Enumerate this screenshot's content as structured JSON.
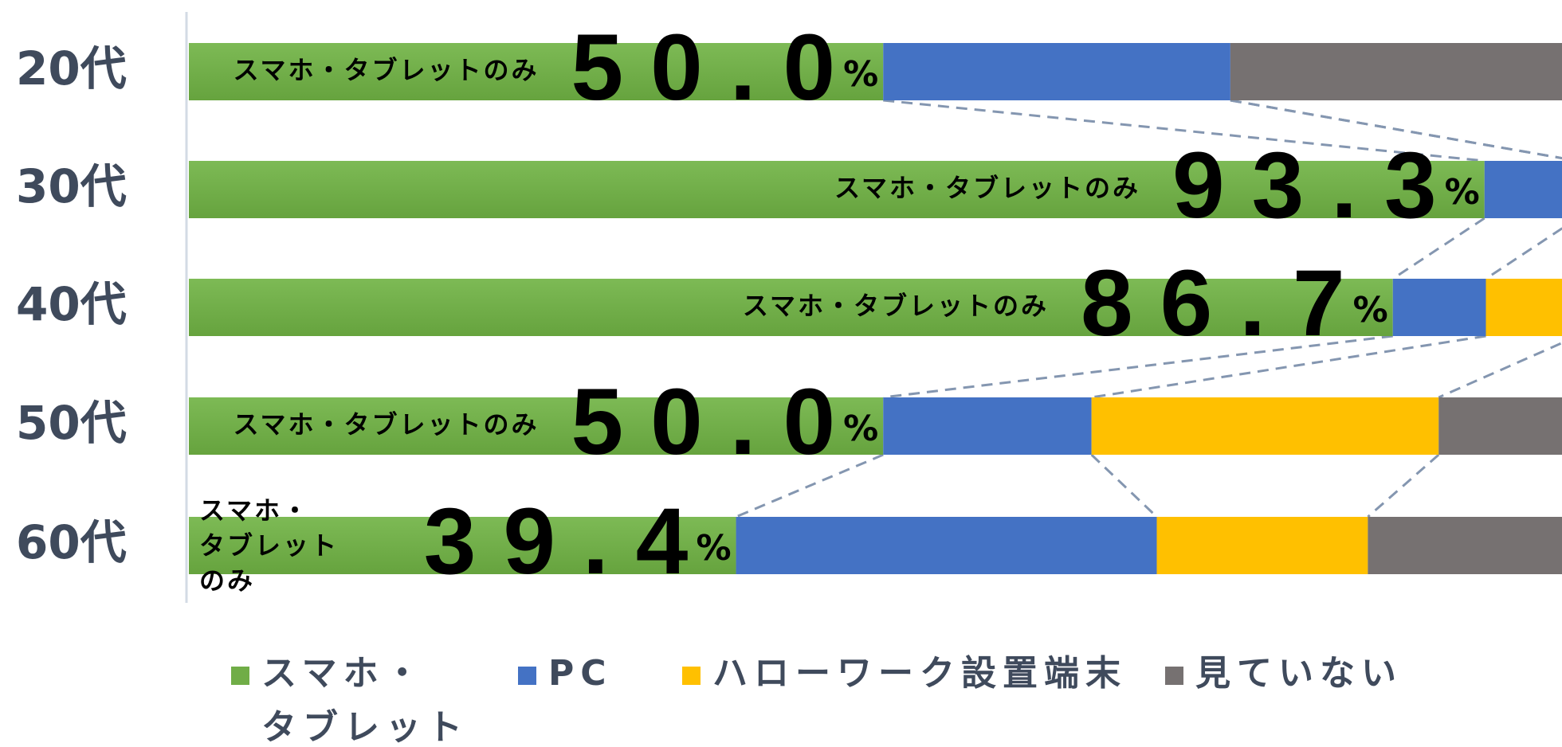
{
  "chart_data": {
    "type": "stacked-bar-horizontal",
    "categories": [
      "20代",
      "30代",
      "40代",
      "50代",
      "60代"
    ],
    "series": [
      {
        "name": "スマホ・タブレット",
        "color": "#70ad47",
        "values": [
          50.0,
          93.3,
          86.7,
          50.0,
          39.4
        ],
        "value_labels": [
          "50.0",
          "93.3",
          "86.7",
          "50.0",
          "39.4"
        ]
      },
      {
        "name": "PC",
        "color": "#4472c4",
        "values": [
          25.0,
          6.7,
          6.7,
          15.0,
          30.3
        ]
      },
      {
        "name": "ハローワーク設置端末",
        "color": "#ffc000",
        "values": [
          0,
          0,
          6.6,
          25.0,
          15.2
        ]
      },
      {
        "name": "見ていない",
        "color": "#767171",
        "values": [
          25.0,
          0,
          0,
          10.0,
          15.1
        ]
      }
    ],
    "value_label_unit": "%",
    "inner_label": "スマホ・タブレットのみ",
    "xlim": [
      0,
      100
    ],
    "legend": "bottom"
  }
}
